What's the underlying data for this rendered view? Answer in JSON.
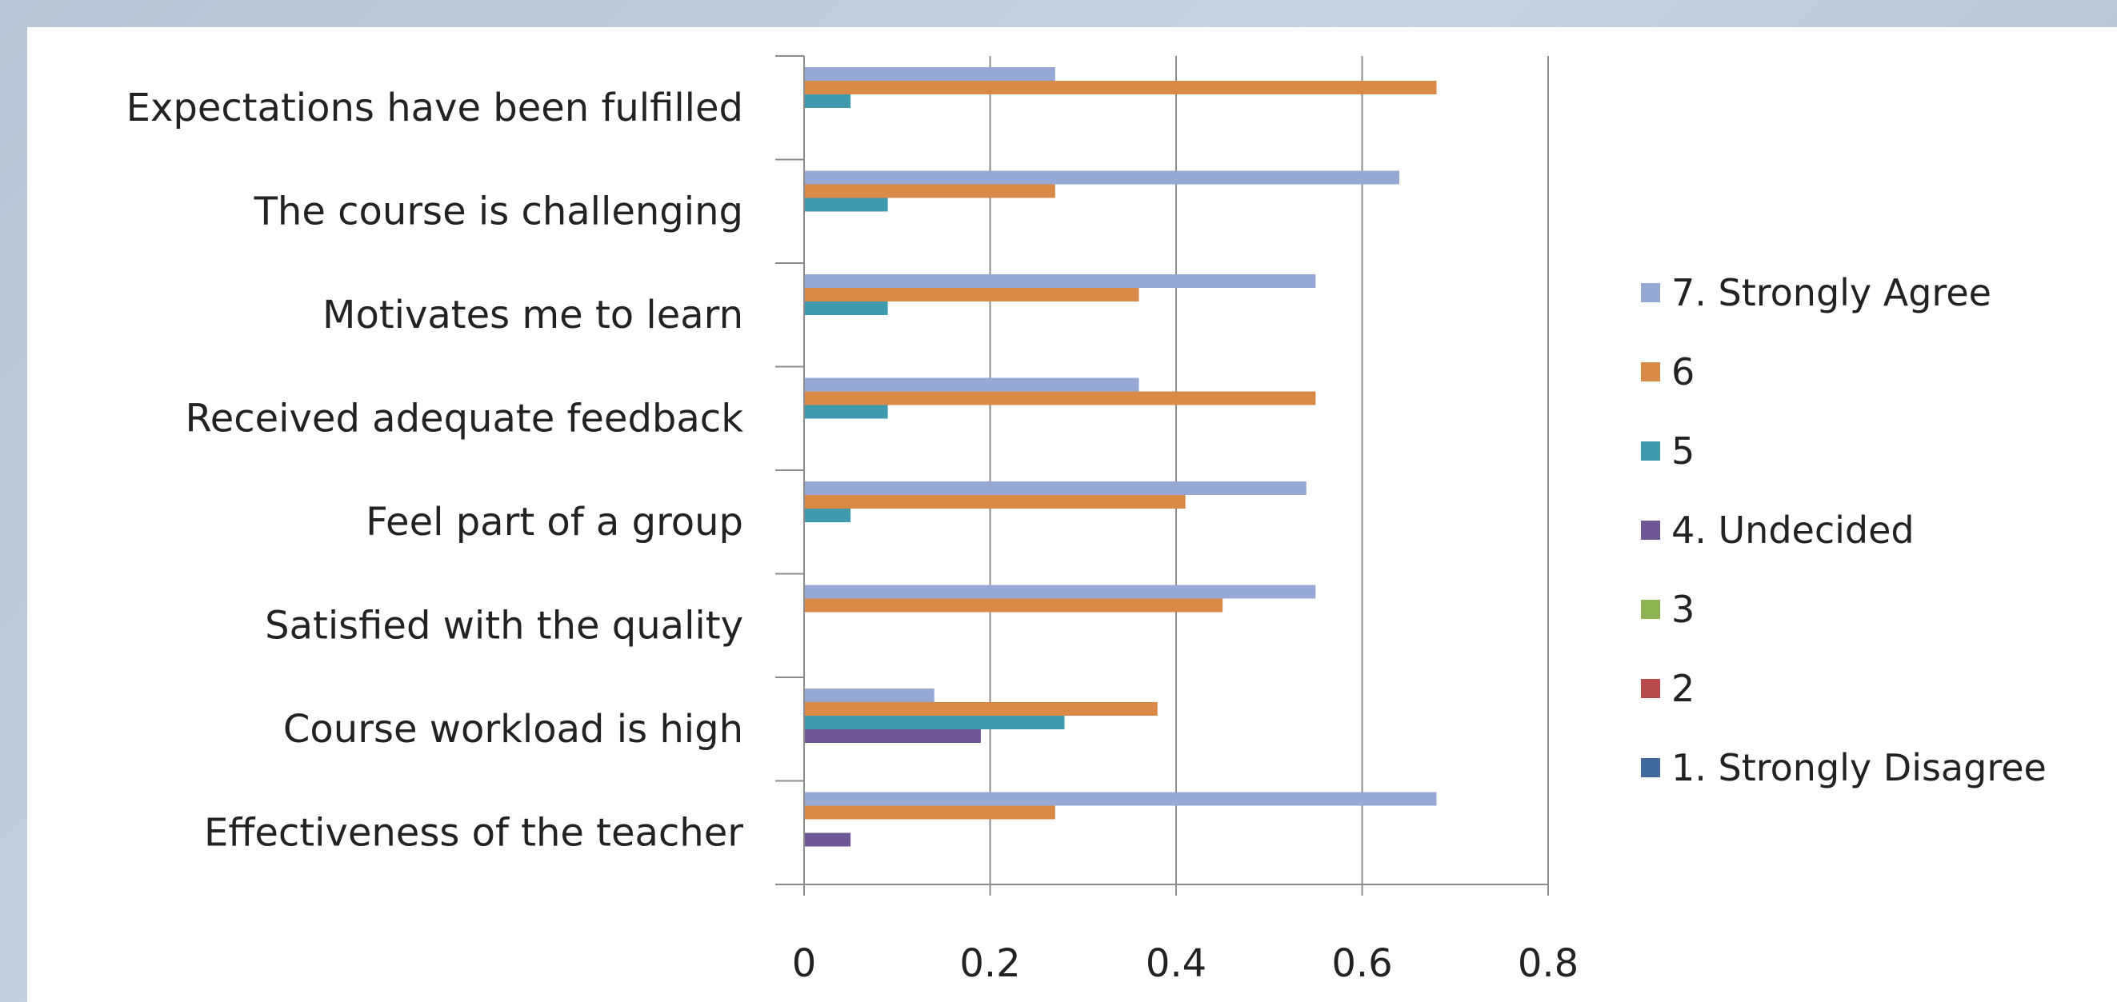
{
  "chart_data": {
    "type": "bar",
    "orientation": "horizontal",
    "categories": [
      "Expectations have been fulfilled",
      "The course is challenging",
      "Motivates me to learn",
      "Received adequate feedback",
      "Feel part of a group",
      "Satisfied with the quality",
      "Course workload is high",
      "Effectiveness of the teacher"
    ],
    "series": [
      {
        "name": "7. Strongly Agree",
        "color": "#95a9d4",
        "values": [
          0.27,
          0.64,
          0.55,
          0.36,
          0.54,
          0.55,
          0.14,
          0.68
        ]
      },
      {
        "name": "6",
        "color": "#d98a46",
        "values": [
          0.68,
          0.27,
          0.36,
          0.55,
          0.41,
          0.45,
          0.38,
          0.27
        ]
      },
      {
        "name": "5",
        "color": "#3f9aad",
        "values": [
          0.05,
          0.09,
          0.09,
          0.09,
          0.05,
          0,
          0.28,
          0
        ]
      },
      {
        "name": "4. Undecided",
        "color": "#6e5796",
        "values": [
          0,
          0,
          0,
          0,
          0,
          0,
          0.19,
          0.05
        ]
      },
      {
        "name": "3",
        "color": "#8db352",
        "values": [
          0,
          0,
          0,
          0,
          0,
          0,
          0,
          0
        ]
      },
      {
        "name": "2",
        "color": "#b84a4a",
        "values": [
          0,
          0,
          0,
          0,
          0,
          0,
          0,
          0
        ]
      },
      {
        "name": "1. Strongly Disagree",
        "color": "#41699f",
        "values": [
          0,
          0,
          0,
          0,
          0,
          0,
          0,
          0
        ]
      }
    ],
    "xlim": [
      0,
      0.8
    ],
    "xticks": [
      0,
      0.2,
      0.4,
      0.6,
      0.8
    ],
    "xtick_labels": [
      "0",
      "0.2",
      "0.4",
      "0.6",
      "0.8"
    ],
    "grid": "vertical",
    "legend_position": "right"
  }
}
